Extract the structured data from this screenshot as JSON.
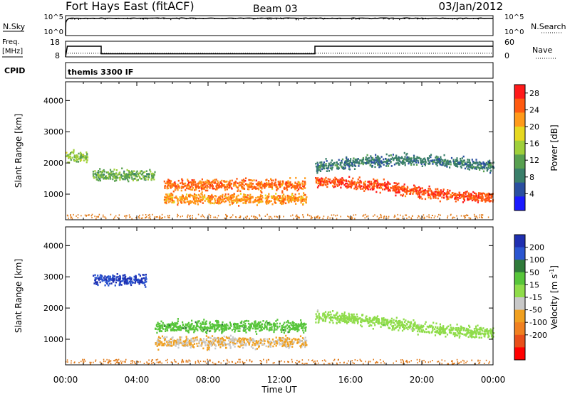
{
  "header": {
    "title": "Fort Hays East (fitACF)",
    "beam": "Beam 03",
    "date": "03/Jan/2012"
  },
  "top_panels": {
    "nsky_label": "N.Sky",
    "nsky_ticks": [
      "10^5",
      "10^0"
    ],
    "nsearch_label": "N.Search",
    "nsearch_ticks": [
      "10^5",
      "10^0"
    ],
    "freq_label_1": "Freq.",
    "freq_label_2": "[MHz]",
    "freq_ticks": [
      "18",
      "8"
    ],
    "nave_label": "Nave",
    "nave_ticks": [
      "60",
      "0"
    ],
    "cpid_label": "CPID",
    "cpid_text": "themis 3300 IF"
  },
  "colors": {
    "frame": "#000000",
    "power_scale": [
      "#1a1aff",
      "#2a4fa0",
      "#3a7f6a",
      "#58a050",
      "#9fcf3a",
      "#e6d820",
      "#ff9a1a",
      "#ff5a10",
      "#ff1a1a"
    ],
    "velocity_scale": [
      "#1f2fb0",
      "#2a55d0",
      "#2f7a3a",
      "#57c53a",
      "#8fdc4a",
      "#c8c8c8",
      "#f0a020",
      "#f08020",
      "#e84f1a",
      "#ff0000"
    ],
    "background_points": "#e07a1a"
  },
  "chart_data": [
    {
      "type": "line",
      "panel": "N.Sky / N.Search noise",
      "ylabel": "N.Sky",
      "y2label": "N.Search",
      "yscale": "log",
      "ylim": [
        1,
        100000
      ],
      "x_hours": [
        0,
        0.2,
        2,
        4,
        6,
        8,
        10,
        12,
        14,
        16,
        18,
        20,
        22,
        24
      ],
      "series": [
        {
          "name": "N.Sky",
          "values": [
            1,
            20000,
            22000,
            23000,
            22000,
            22000,
            23000,
            22000,
            21000,
            22000,
            22000,
            23000,
            22000,
            21000
          ]
        }
      ]
    },
    {
      "type": "line",
      "panel": "Frequency / Nave",
      "ylabel": "Freq. [MHz]",
      "y2label": "Nave",
      "ylim": [
        8,
        18
      ],
      "y2lim": [
        0,
        60
      ],
      "series": [
        {
          "name": "Freq.",
          "x_hours": [
            0,
            0.1,
            2.0,
            2.0,
            14.0,
            14.0,
            24
          ],
          "values": [
            8,
            14.8,
            14.8,
            10.0,
            10.0,
            14.8,
            14.8
          ]
        },
        {
          "name": "Nave",
          "x_hours": [
            0,
            24
          ],
          "values": [
            14,
            14
          ]
        }
      ]
    },
    {
      "type": "heatmap",
      "panel": "Power",
      "ylabel": "Slant Range [km]",
      "xlabel": "Time UT",
      "xlim": [
        "00:00",
        "24:00"
      ],
      "x_ticks": [
        "00:00",
        "04:00",
        "08:00",
        "12:00",
        "16:00",
        "20:00",
        "00:00"
      ],
      "ylim": [
        180,
        4600
      ],
      "y_ticks": [
        1000,
        2000,
        3000,
        4000
      ],
      "colorbar_label": "Power [dB]",
      "colorbar_ticks": [
        4,
        8,
        12,
        16,
        20,
        24,
        28
      ],
      "colorbar_range": [
        0,
        30
      ],
      "features": [
        {
          "time_start_h": 0.0,
          "time_end_h": 1.2,
          "range_km": 2200,
          "power_db": 14
        },
        {
          "time_start_h": 1.5,
          "time_end_h": 5.0,
          "range_km": 1600,
          "power_db": 12
        },
        {
          "time_start_h": 5.5,
          "time_end_h": 13.5,
          "range_km": 1300,
          "power_db": 24
        },
        {
          "time_start_h": 5.5,
          "time_end_h": 13.5,
          "range_km": 850,
          "power_db": 22
        },
        {
          "time_start_h": 14.0,
          "time_end_h": 24.0,
          "range_km": 1300,
          "power_db": 26
        },
        {
          "time_start_h": 14.0,
          "time_end_h": 24.0,
          "range_km": 2100,
          "power_db": 8
        }
      ]
    },
    {
      "type": "heatmap",
      "panel": "Velocity",
      "ylabel": "Slant Range [km]",
      "xlabel": "Time UT",
      "xlim": [
        "00:00",
        "24:00"
      ],
      "x_ticks": [
        "00:00",
        "04:00",
        "08:00",
        "12:00",
        "16:00",
        "20:00",
        "00:00"
      ],
      "ylim": [
        180,
        4600
      ],
      "y_ticks": [
        1000,
        2000,
        3000,
        4000
      ],
      "colorbar_label": "Velocity [m s^-1]",
      "colorbar_ticks": [
        200,
        100,
        50,
        15,
        -15,
        -50,
        -100,
        -200
      ],
      "features": [
        {
          "time_start_h": 1.5,
          "time_end_h": 4.5,
          "range_km": 2900,
          "velocity_ms": 200
        },
        {
          "time_start_h": 5.0,
          "time_end_h": 13.5,
          "range_km": 1400,
          "velocity_ms": 40
        },
        {
          "time_start_h": 5.0,
          "time_end_h": 13.5,
          "range_km": 900,
          "velocity_ms": -50
        },
        {
          "time_start_h": 14.0,
          "time_end_h": 24.0,
          "range_km": 1600,
          "velocity_ms": 0
        }
      ]
    }
  ],
  "axis": {
    "ylabel": "Slant Range [km]",
    "xlabel": "Time UT",
    "x_ticks": [
      "00:00",
      "04:00",
      "08:00",
      "12:00",
      "16:00",
      "20:00",
      "00:00"
    ],
    "y_ticks": [
      "1000",
      "2000",
      "3000",
      "4000"
    ]
  },
  "colorbars": {
    "power_title": "Power [dB]",
    "power_ticks": [
      "4",
      "8",
      "12",
      "16",
      "20",
      "24",
      "28"
    ],
    "velocity_title_main": "Velocity [m s",
    "velocity_title_sup": "-1",
    "velocity_title_end": "]",
    "velocity_ticks": [
      "200",
      "100",
      "50",
      "15",
      "-15",
      "-50",
      "-100",
      "-200"
    ]
  }
}
